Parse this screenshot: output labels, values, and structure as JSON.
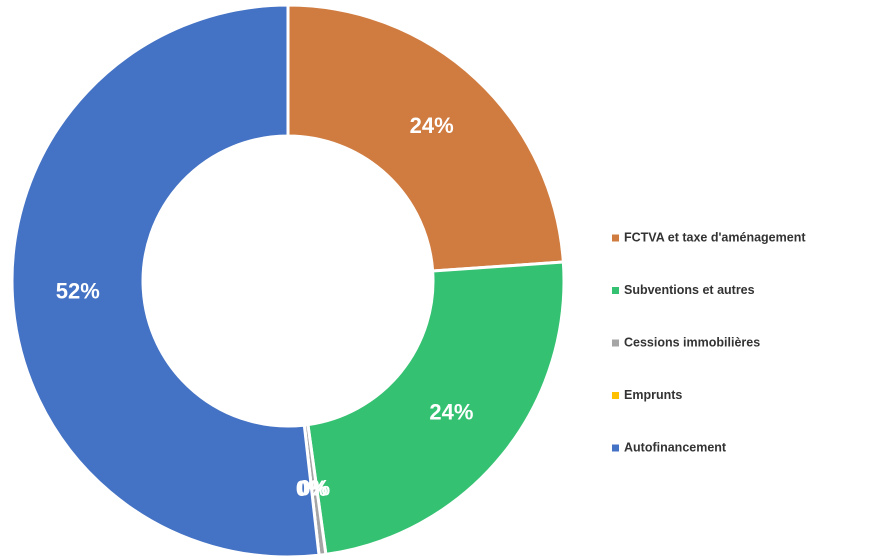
{
  "chart_data": {
    "type": "donut",
    "categories": [
      "FCTVA et taxe d'aménagement",
      "Subventions et autres",
      "Cessions immobilières",
      "Emprunts",
      "Autofinancement"
    ],
    "values": [
      24,
      24,
      0.4,
      0,
      52
    ],
    "value_labels": [
      "24%",
      "24%",
      "0%",
      "0%",
      "52%"
    ],
    "colors": [
      "#d07c41",
      "#35c172",
      "#a5a5a5",
      "#ffc000",
      "#4472c4"
    ],
    "legend": "right"
  }
}
